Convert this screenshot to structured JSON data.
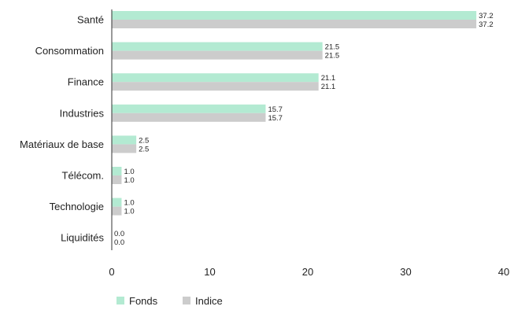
{
  "colors": {
    "fonds": "#b3ead2",
    "indice": "#cccccc",
    "axis": "#333333"
  },
  "chart_data": {
    "type": "bar",
    "orientation": "horizontal",
    "categories": [
      "Santé",
      "Consommation",
      "Finance",
      "Industries",
      "Matériaux de base",
      "Télécom.",
      "Technologie",
      "Liquidités"
    ],
    "series": [
      {
        "name": "Fonds",
        "values": [
          37.2,
          21.5,
          21.1,
          15.7,
          2.5,
          1.0,
          1.0,
          0.0
        ],
        "labels": [
          "37.2",
          "21.5",
          "21.1",
          "15.7",
          "2.5",
          "1.0",
          "1.0",
          "0.0"
        ]
      },
      {
        "name": "Indice",
        "values": [
          37.2,
          21.5,
          21.1,
          15.7,
          2.5,
          1.0,
          1.0,
          0.0
        ],
        "labels": [
          "37.2",
          "21.5",
          "21.1",
          "15.7",
          "2.5",
          "1.0",
          "1.0",
          "0.0"
        ]
      }
    ],
    "xlim": [
      0,
      40
    ],
    "xticks": [
      "0",
      "10",
      "20",
      "30",
      "40"
    ],
    "grid": false,
    "legend": "bottom-left"
  }
}
